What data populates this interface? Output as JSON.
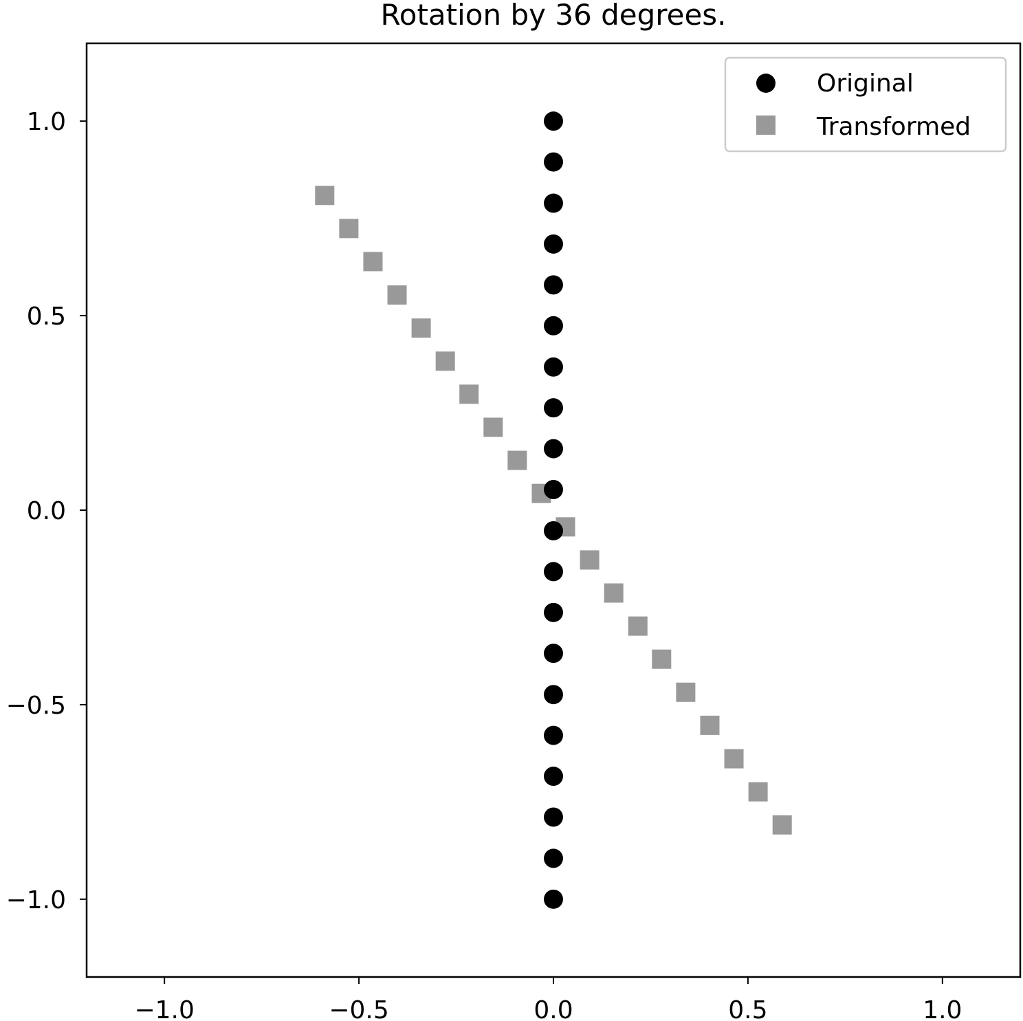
{
  "chart_data": {
    "type": "scatter",
    "title": "Rotation by 36 degrees.",
    "xlabel": "",
    "ylabel": "",
    "xlim": [
      -1.2,
      1.2
    ],
    "ylim": [
      -1.2,
      1.2
    ],
    "xticks": [
      -1.0,
      -0.5,
      0.0,
      0.5,
      1.0
    ],
    "yticks": [
      -1.0,
      -0.5,
      0.0,
      0.5,
      1.0
    ],
    "xtick_labels": [
      "−1.0",
      "−0.5",
      "0.0",
      "0.5",
      "1.0"
    ],
    "ytick_labels": [
      "−1.0",
      "−0.5",
      "0.0",
      "0.5",
      "1.0"
    ],
    "grid": false,
    "legend_position": "top-right",
    "series": [
      {
        "name": "Original",
        "marker": "circle",
        "color": "#000000",
        "x": [
          0,
          0,
          0,
          0,
          0,
          0,
          0,
          0,
          0,
          0,
          0,
          0,
          0,
          0,
          0,
          0,
          0,
          0,
          0,
          0
        ],
        "y": [
          -1.0,
          -0.895,
          -0.789,
          -0.684,
          -0.579,
          -0.474,
          -0.368,
          -0.263,
          -0.158,
          -0.053,
          0.053,
          0.158,
          0.263,
          0.368,
          0.474,
          0.579,
          0.684,
          0.789,
          0.895,
          1.0
        ]
      },
      {
        "name": "Transformed",
        "marker": "square",
        "color": "#999999",
        "x": [
          0.588,
          0.526,
          0.464,
          0.402,
          0.34,
          0.278,
          0.217,
          0.155,
          0.093,
          0.031,
          -0.031,
          -0.093,
          -0.155,
          -0.217,
          -0.278,
          -0.34,
          -0.402,
          -0.464,
          -0.526,
          -0.588
        ],
        "y": [
          -0.809,
          -0.724,
          -0.639,
          -0.553,
          -0.468,
          -0.383,
          -0.298,
          -0.213,
          -0.128,
          -0.043,
          0.043,
          0.128,
          0.213,
          0.298,
          0.383,
          0.468,
          0.553,
          0.639,
          0.724,
          0.809
        ]
      }
    ]
  }
}
